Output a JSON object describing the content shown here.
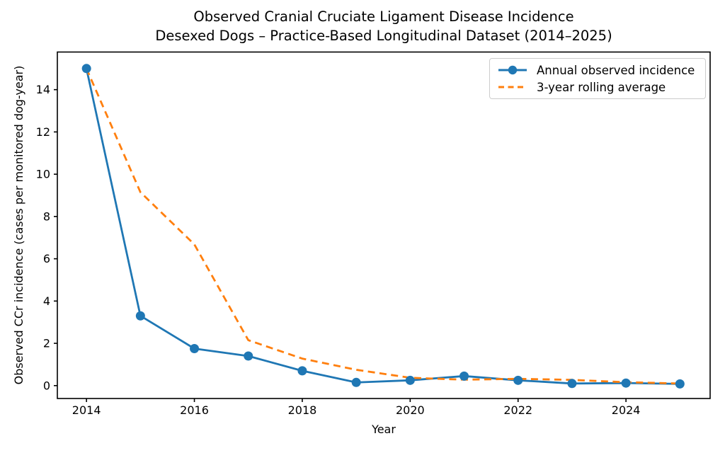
{
  "figure": {
    "background": "#ffffff",
    "text_color": "#000000"
  },
  "chart_data": {
    "type": "line",
    "title_line1": "Observed Cranial Cruciate Ligament Disease Incidence",
    "title_line2": "Desexed Dogs – Practice-Based Longitudinal Dataset (2014–2025)",
    "xlabel": "Year",
    "ylabel": "Observed CCr incidence (cases per monitored dog-year)",
    "x": [
      2014,
      2015,
      2016,
      2017,
      2018,
      2019,
      2020,
      2021,
      2022,
      2023,
      2024,
      2025
    ],
    "series": [
      {
        "name": "Annual observed incidence",
        "color": "#1f77b4",
        "style": "solid",
        "marker": "circle",
        "values": [
          15.0,
          3.3,
          1.75,
          1.4,
          0.7,
          0.15,
          0.25,
          0.45,
          0.25,
          0.1,
          0.12,
          0.08
        ]
      },
      {
        "name": "3-year rolling average",
        "color": "#ff7f0e",
        "style": "dashed",
        "marker": "none",
        "values": [
          15.0,
          9.15,
          6.68,
          2.15,
          1.28,
          0.75,
          0.37,
          0.28,
          0.32,
          0.27,
          0.16,
          0.1
        ]
      }
    ],
    "x_ticks": [
      2014,
      2016,
      2018,
      2020,
      2022,
      2024
    ],
    "y_ticks": [
      0,
      2,
      4,
      6,
      8,
      10,
      12,
      14
    ],
    "xlim": [
      2013.46,
      2025.56
    ],
    "ylim": [
      -0.61,
      15.78
    ],
    "grid": false,
    "legend_position": "upper right"
  }
}
